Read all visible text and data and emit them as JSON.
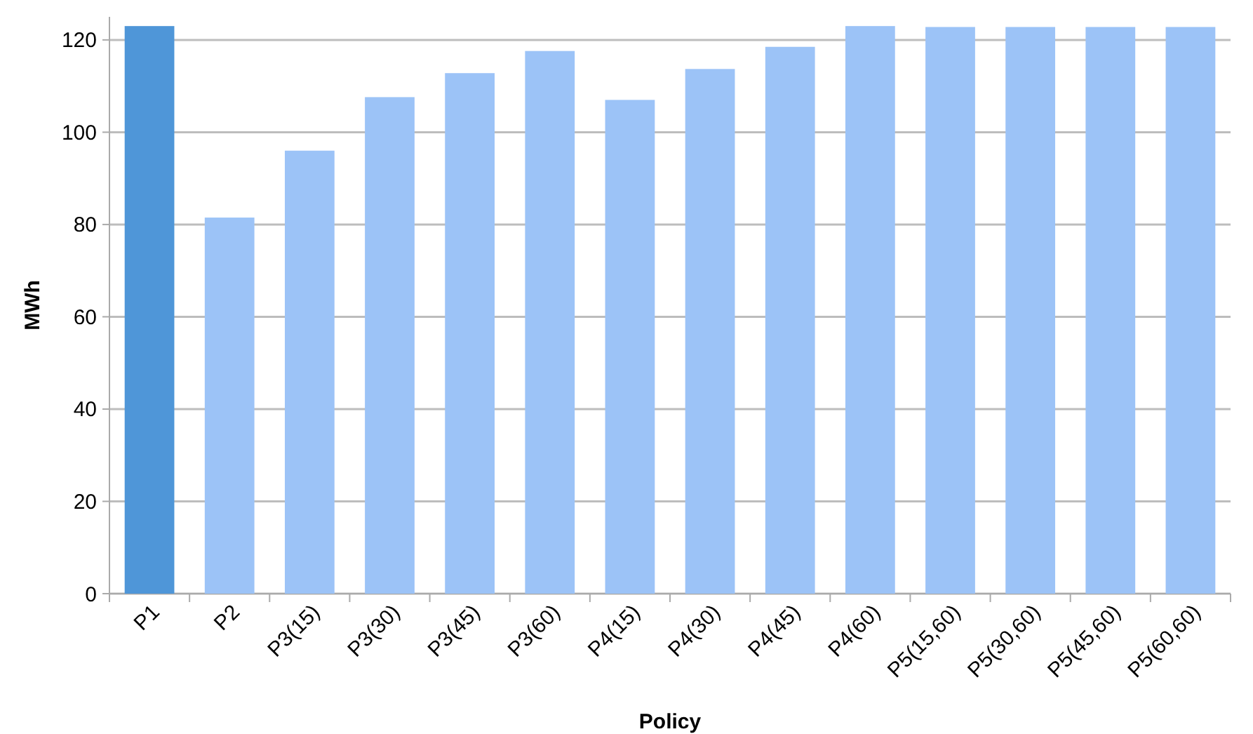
{
  "chart_data": {
    "type": "bar",
    "xlabel": "Policy",
    "ylabel": "MWh",
    "categories": [
      "P1",
      "P2",
      "P3(15)",
      "P3(30)",
      "P3(45)",
      "P3(60)",
      "P4(15)",
      "P4(30)",
      "P4(45)",
      "P4(60)",
      "P5(15,60)",
      "P5(30,60)",
      "P5(45,60)",
      "P5(60,60)"
    ],
    "values": [
      123,
      81.5,
      96,
      107.6,
      112.8,
      117.6,
      107,
      113.7,
      118.5,
      123,
      122.8,
      122.8,
      122.8,
      122.8
    ],
    "colors": [
      "#4f96d8",
      "#9cc3f7",
      "#9cc3f7",
      "#9cc3f7",
      "#9cc3f7",
      "#9cc3f7",
      "#9cc3f7",
      "#9cc3f7",
      "#9cc3f7",
      "#9cc3f7",
      "#9cc3f7",
      "#9cc3f7",
      "#9cc3f7",
      "#9cc3f7"
    ],
    "ylim": [
      0,
      125
    ],
    "yticks": [
      0,
      20,
      40,
      60,
      80,
      100,
      120
    ],
    "grid": "y"
  }
}
